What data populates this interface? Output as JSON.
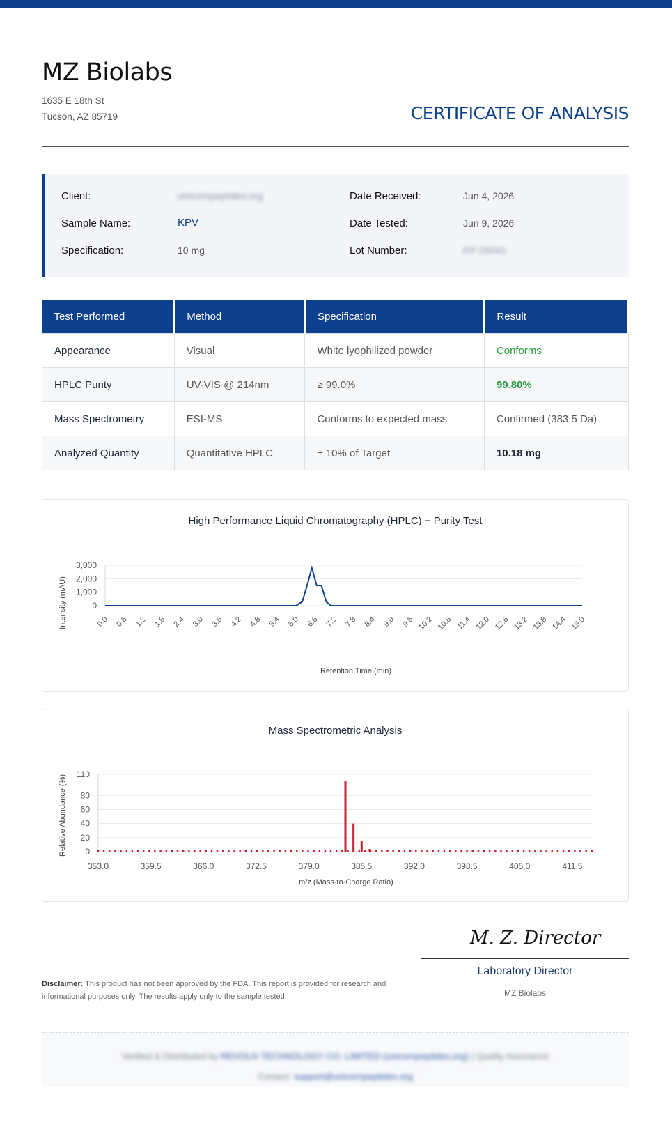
{
  "company": {
    "name": "MZ Biolabs",
    "address_line1": "1635 E 18th St",
    "address_line2": "Tucson, AZ 85719"
  },
  "document_title": "CERTIFICATE OF ANALYSIS",
  "info": {
    "client_label": "Client:",
    "client_value": "unicornpeptides.org",
    "sample_label": "Sample Name:",
    "sample_value": "KPV",
    "spec_label": "Specification:",
    "spec_value": "10 mg",
    "received_label": "Date Received:",
    "received_value": "Jun 4, 2026",
    "tested_label": "Date Tested:",
    "tested_value": "Jun 9, 2026",
    "lot_label": "Lot Number:",
    "lot_value": "KP-26041"
  },
  "results_table": {
    "headers": [
      "Test Performed",
      "Method",
      "Specification",
      "Result"
    ],
    "rows": [
      [
        "Appearance",
        "Visual",
        "White lyophilized powder",
        "Conforms"
      ],
      [
        "HPLC Purity",
        "UV-VIS @ 214nm",
        "≥ 99.0%",
        "99.80%"
      ],
      [
        "Mass Spectrometry",
        "ESI-MS",
        "Conforms to expected mass",
        "Confirmed (383.5 Da)"
      ],
      [
        "Analyzed Quantity",
        "Quantitative HPLC",
        "± 10% of Target",
        "10.18 mg"
      ]
    ],
    "colors": {
      "header_bg": "#0c3f8c",
      "pass": "#229a3a"
    }
  },
  "chart_data": [
    {
      "type": "line",
      "title": "High Performance Liquid Chromatography (HPLC)  −  Purity Test",
      "xlabel": "Retention Time (min)",
      "ylabel": "Intensity (mAU)",
      "ylim": [
        0,
        3000
      ],
      "yticks": [
        "0",
        "1,000",
        "2,000",
        "3,000"
      ],
      "xticks": [
        "0.0",
        "0.6",
        "1.2",
        "1.8",
        "2.4",
        "3.0",
        "3.6",
        "4.2",
        "4.8",
        "5.4",
        "6.0",
        "6.6",
        "7.2",
        "7.8",
        "8.4",
        "9.0",
        "9.6",
        "10.2",
        "10.8",
        "11.4",
        "12.0",
        "12.6",
        "13.2",
        "13.8",
        "14.4",
        "15.0"
      ],
      "xlim": [
        0,
        15
      ],
      "grid": true,
      "color": "#0c3f8c",
      "x": [
        0,
        6.0,
        6.2,
        6.35,
        6.5,
        6.65,
        6.8,
        6.95,
        7.1,
        7.3,
        15
      ],
      "y": [
        0,
        0,
        300,
        1500,
        2800,
        1500,
        1500,
        300,
        0,
        0,
        0
      ]
    },
    {
      "type": "bar",
      "title": "Mass Spectrometric Analysis",
      "xlabel": "m/z (Mass-to-Charge Ratio)",
      "ylabel": "Relative Abundance (%)",
      "ylim": [
        0,
        110
      ],
      "yticks": [
        "0",
        "20",
        "40",
        "60",
        "80",
        "110"
      ],
      "xticks": [
        "353.0",
        "359.5",
        "366.0",
        "372.5",
        "379.0",
        "385.5",
        "392.0",
        "398.5",
        "405.0",
        "411.5"
      ],
      "xlim": [
        353.0,
        414.0
      ],
      "grid": true,
      "color": "#c9202a",
      "noise_level": 2,
      "peaks": [
        {
          "mz": 383.5,
          "value": 100
        },
        {
          "mz": 384.5,
          "value": 40
        },
        {
          "mz": 385.5,
          "value": 15
        },
        {
          "mz": 386.5,
          "value": 4
        }
      ]
    }
  ],
  "signature": {
    "name": "M. Z. Director",
    "title": "Laboratory Director",
    "org": "MZ Biolabs"
  },
  "disclaimer": {
    "label": "Disclaimer:",
    "text": " This product has not been approved by the FDA. This report is provided for research and informational purposes only. The results apply only to the sample tested."
  },
  "footer": {
    "verified_prefix": "Verified & Distributed by ",
    "verified_org": "REVOLN TECHNOLOGY CO. LIMITED (unicornpeptides.org)",
    "separator": "|",
    "quality": "Quality Assurance",
    "contact_label": "Contact: ",
    "contact_email": "support@unicornpeptides.org"
  }
}
